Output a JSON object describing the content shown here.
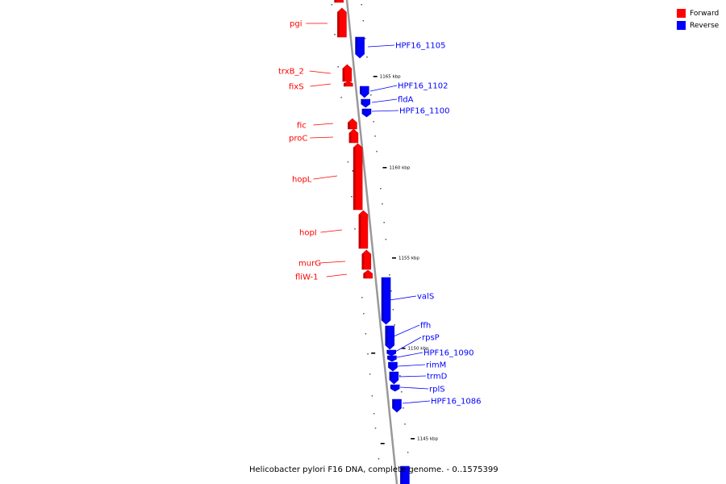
{
  "legend": [
    {
      "label": "Forward",
      "color": "#ff0000"
    },
    {
      "label": "Reverse",
      "color": "#0000ff"
    }
  ],
  "caption": "Helicobacter pylori F16 DNA, complete genome. - 0..1575399",
  "colors": {
    "forward": "#ff0000",
    "reverse": "#0000ff",
    "backbone": "#999999"
  },
  "scale_ticks": [
    {
      "label": "1165 kbp"
    },
    {
      "label": "1160 kbp"
    },
    {
      "label": "1155 kbp"
    },
    {
      "label": "1150 kbp"
    },
    {
      "label": "1145 kbp"
    }
  ],
  "genes": [
    {
      "name": "pgi",
      "strand": "forward"
    },
    {
      "name": "HPF16_1105",
      "strand": "reverse"
    },
    {
      "name": "trxB_2",
      "strand": "forward"
    },
    {
      "name": "fixS",
      "strand": "forward"
    },
    {
      "name": "HPF16_1102",
      "strand": "reverse"
    },
    {
      "name": "fldA",
      "strand": "reverse"
    },
    {
      "name": "HPF16_1100",
      "strand": "reverse"
    },
    {
      "name": "fic",
      "strand": "forward"
    },
    {
      "name": "proC",
      "strand": "forward"
    },
    {
      "name": "hopL",
      "strand": "forward"
    },
    {
      "name": "hopI",
      "strand": "forward"
    },
    {
      "name": "murG",
      "strand": "forward"
    },
    {
      "name": "fliW-1",
      "strand": "forward"
    },
    {
      "name": "valS",
      "strand": "reverse"
    },
    {
      "name": "ffh",
      "strand": "reverse"
    },
    {
      "name": "rpsP",
      "strand": "reverse"
    },
    {
      "name": "HPF16_1090",
      "strand": "reverse"
    },
    {
      "name": "rimM",
      "strand": "reverse"
    },
    {
      "name": "trmD",
      "strand": "reverse"
    },
    {
      "name": "rplS",
      "strand": "reverse"
    },
    {
      "name": "HPF16_1086",
      "strand": "reverse"
    }
  ]
}
